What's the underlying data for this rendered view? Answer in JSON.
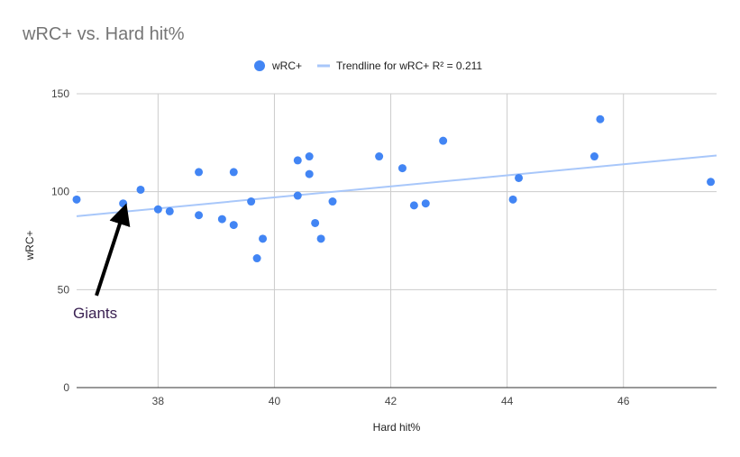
{
  "chart_data": {
    "type": "scatter",
    "title": "wRC+ vs. Hard hit%",
    "xlabel": "Hard hit%",
    "ylabel": "wRC+",
    "xlim": [
      36.6,
      47.6
    ],
    "ylim": [
      0,
      150
    ],
    "x_ticks": [
      "38",
      "40",
      "42",
      "44",
      "46"
    ],
    "y_ticks": [
      "0",
      "50",
      "100",
      "150"
    ],
    "grid": true,
    "legend_position": "top",
    "legend": {
      "series_label": "wRC+",
      "trendline_label": "Trendline for wRC+ R² = 0.211"
    },
    "series": [
      {
        "name": "wRC+",
        "color": "#4285f4",
        "points": [
          {
            "x": 36.6,
            "y": 96
          },
          {
            "x": 37.4,
            "y": 94
          },
          {
            "x": 37.7,
            "y": 101
          },
          {
            "x": 38.0,
            "y": 91
          },
          {
            "x": 38.2,
            "y": 90
          },
          {
            "x": 38.7,
            "y": 110
          },
          {
            "x": 38.7,
            "y": 88
          },
          {
            "x": 39.1,
            "y": 86
          },
          {
            "x": 39.3,
            "y": 110
          },
          {
            "x": 39.3,
            "y": 83
          },
          {
            "x": 39.6,
            "y": 95
          },
          {
            "x": 39.7,
            "y": 66
          },
          {
            "x": 39.8,
            "y": 76
          },
          {
            "x": 40.4,
            "y": 116
          },
          {
            "x": 40.4,
            "y": 98
          },
          {
            "x": 40.6,
            "y": 118
          },
          {
            "x": 40.6,
            "y": 109
          },
          {
            "x": 40.7,
            "y": 84
          },
          {
            "x": 40.8,
            "y": 76
          },
          {
            "x": 41.0,
            "y": 95
          },
          {
            "x": 41.8,
            "y": 118
          },
          {
            "x": 42.2,
            "y": 112
          },
          {
            "x": 42.4,
            "y": 93
          },
          {
            "x": 42.6,
            "y": 94
          },
          {
            "x": 42.9,
            "y": 126
          },
          {
            "x": 44.1,
            "y": 96
          },
          {
            "x": 44.2,
            "y": 107
          },
          {
            "x": 45.5,
            "y": 118
          },
          {
            "x": 45.6,
            "y": 137
          },
          {
            "x": 47.5,
            "y": 105
          }
        ]
      }
    ],
    "trendline": {
      "color": "#a8c7fa",
      "points": [
        {
          "x": 36.6,
          "y": 87.5
        },
        {
          "x": 47.6,
          "y": 118.5
        }
      ]
    },
    "annotations": [
      {
        "text": "Giants",
        "arrow_from": {
          "x": 36.6,
          "y": 47
        },
        "arrow_to": {
          "x": 37.4,
          "y": 87
        }
      }
    ]
  }
}
